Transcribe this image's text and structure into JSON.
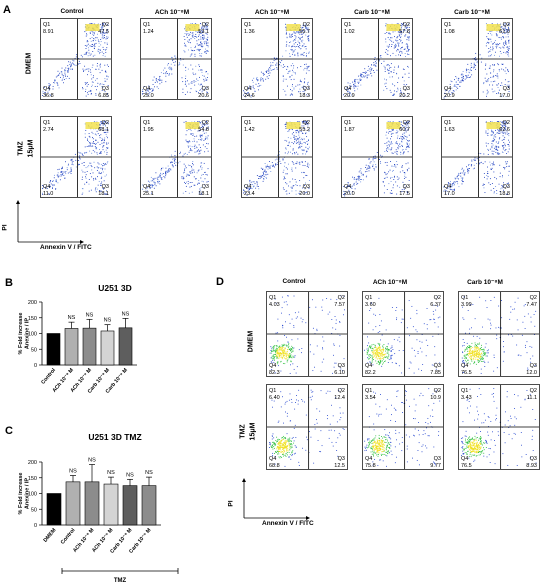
{
  "panels": {
    "A": {
      "letter": "A",
      "columns": [
        "Control",
        "ACh 10⁻⁸M",
        "ACh 10⁻⁹M",
        "Carb 10⁻⁸M",
        "Carb 10⁻⁹M"
      ],
      "rows": [
        {
          "label": "DMEM",
          "label2": ""
        },
        {
          "label": "TMZ",
          "label2": "15μM"
        }
      ],
      "quadrant_names": [
        "Q1",
        "Q2",
        "Q3",
        "Q4"
      ],
      "values": [
        [
          [
            "8.91",
            "47.5",
            "6.85",
            "36.8"
          ],
          [
            "1.24",
            "53.1",
            "20.6",
            "25.0"
          ],
          [
            "1.36",
            "55.7",
            "18.3",
            "24.6"
          ],
          [
            "1.02",
            "57.8",
            "20.2",
            "20.9"
          ],
          [
            "1.08",
            "61.0",
            "17.0",
            "20.9"
          ]
        ],
        [
          [
            "2.74",
            "68.1",
            "18.1",
            "11.0"
          ],
          [
            "1.95",
            "54.8",
            "18.1",
            "25.1"
          ],
          [
            "1.42",
            "55.2",
            "20.0",
            "23.4"
          ],
          [
            "1.87",
            "60.7",
            "17.5",
            "20.0"
          ],
          [
            "1.63",
            "62.6",
            "18.8",
            "17.0"
          ]
        ]
      ],
      "y_axis": "PI",
      "x_axis": "Annexin V / FITC"
    },
    "D": {
      "letter": "D",
      "columns": [
        "Control",
        "ACh 10⁻⁸M",
        "Carb 10⁻⁸M"
      ],
      "rows": [
        {
          "label": "DMEM",
          "label2": ""
        },
        {
          "label": "TMZ",
          "label2": "15μM"
        }
      ],
      "quadrant_names": [
        "Q1",
        "Q2",
        "Q3",
        "Q4"
      ],
      "values": [
        [
          [
            "4.03",
            "7.57",
            "6.10",
            "82.3"
          ],
          [
            "3.60",
            "6.37",
            "7.85",
            "82.2"
          ],
          [
            "3.99",
            "7.47",
            "12.0",
            "76.5"
          ]
        ],
        [
          [
            "6.40",
            "12.4",
            "12.5",
            "68.8"
          ],
          [
            "3.54",
            "10.9",
            "9.77",
            "75.8"
          ],
          [
            "3.43",
            "11.1",
            "8.93",
            "76.5"
          ]
        ]
      ],
      "y_axis": "PI",
      "x_axis": "Annexin V / FITC"
    },
    "B": {
      "letter": "B"
    },
    "C": {
      "letter": "C",
      "group_label": "TMZ"
    }
  },
  "chart_data": [
    {
      "type": "bar",
      "title": "U251 3D",
      "ylabel": "% Fold increase Anexine / IP",
      "categories": [
        "Control",
        "ACh 10⁻⁸ M",
        "ACh 10⁻⁹ M",
        "Carb 10⁻⁸ M",
        "Carb 10⁻⁹ M"
      ],
      "values": [
        100,
        116,
        117,
        108,
        118
      ],
      "errors": [
        0,
        20,
        28,
        20,
        30
      ],
      "significance": [
        "",
        "NS",
        "NS",
        "NS",
        "NS"
      ],
      "colors": [
        "#000000",
        "#b0b0b0",
        "#8c8c8c",
        "#d4d4d4",
        "#5e5e5e"
      ],
      "ylim": [
        0,
        200
      ],
      "yticks": [
        "0",
        "50",
        "100",
        "150",
        "200"
      ]
    },
    {
      "type": "bar",
      "title": "U251 3D TMZ",
      "ylabel": "% Fold increase Anexine / IP",
      "categories": [
        "DMEM",
        "Control",
        "ACh 10⁻⁸ M",
        "ACh 10⁻⁹ M",
        "Carb 10⁻⁸ M",
        "Carb 10⁻⁹ M"
      ],
      "values": [
        100,
        137,
        137,
        130,
        125,
        125
      ],
      "errors": [
        0,
        20,
        55,
        22,
        20,
        27
      ],
      "significance": [
        "",
        "NS",
        "NS",
        "NS",
        "NS",
        "NS"
      ],
      "colors": [
        "#000000",
        "#b0b0b0",
        "#8c8c8c",
        "#d4d4d4",
        "#5e5e5e",
        "#8c8c8c"
      ],
      "ylim": [
        0,
        200
      ],
      "yticks": [
        "0",
        "50",
        "100",
        "150",
        "200"
      ]
    }
  ]
}
